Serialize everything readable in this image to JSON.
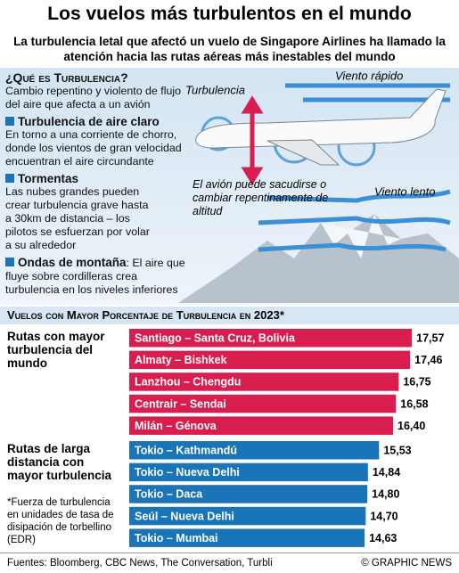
{
  "header": {
    "title": "Los vuelos más turbulentos en el mundo",
    "subtitle": "La turbulencia letal que afectó un vuelo de Singapore Airlines ha llamado la atención hacia las rutas aéreas más inestables del mundo"
  },
  "explainer": {
    "heading": "¿Qué es Turbulencia?",
    "intro": "Cambio repentino y violento de flujo del aire que afecta a un avión",
    "sections": [
      {
        "heading": "Turbulencia de aire claro",
        "text": "En torno a una corriente de chorro, donde los vientos de gran velocidad encuentran el aire circundante"
      },
      {
        "heading": "Tormentas",
        "text": "Las nubes grandes pueden crear turbulencia grave hasta a 30km de distancia – los pilotos se esfuerzan por volar a su alrededor"
      },
      {
        "heading": "Ondas de montaña",
        "text": ": El aire que fluye sobre cordilleras crea turbulencia en los niveles inferiores"
      }
    ]
  },
  "illustration": {
    "turbulence": "Turbulencia",
    "fast_wind": "Viento rápido",
    "slow_wind": "Viento lento",
    "note": "El avión puede sacudirse o cambiar repentinamente de altitud"
  },
  "chart_data": {
    "type": "bar",
    "orientation": "horizontal",
    "title": "Vuelos con Mayor Porcentaje de Turbulencia en 2023*",
    "footnote": "*Fuerza de turbulencia en unidades de tasa de disipación de torbellino (EDR)",
    "xlim": [
      0,
      20
    ],
    "series": [
      {
        "name": "Rutas con mayor turbulencia del mundo",
        "color": "#d81e4f",
        "categories": [
          "Santiago – Santa Cruz, Bolivia",
          "Almaty – Bishkek",
          "Lanzhou – Chengdu",
          "Centrair – Sendai",
          "Milán – Génova"
        ],
        "values": [
          17.57,
          17.46,
          16.75,
          16.58,
          16.4
        ],
        "value_labels": [
          "17,57",
          "17,46",
          "16,75",
          "16,58",
          "16,40"
        ]
      },
      {
        "name": "Rutas de larga distancia con mayor turbulencia",
        "color": "#1a75b8",
        "categories": [
          "Tokio – Kathmandú",
          "Tokio – Nueva Delhi",
          "Tokio – Daca",
          "Seúl – Nueva Delhi",
          "Tokio – Mumbai"
        ],
        "values": [
          15.53,
          14.84,
          14.8,
          14.7,
          14.63
        ],
        "value_labels": [
          "15,53",
          "14,84",
          "14,80",
          "14,70",
          "14,63"
        ]
      }
    ]
  },
  "footer": {
    "sources": "Fuentes: Bloomberg, CBC News, The Conversation, Turbli",
    "credit": "© GRAPHIC NEWS"
  }
}
